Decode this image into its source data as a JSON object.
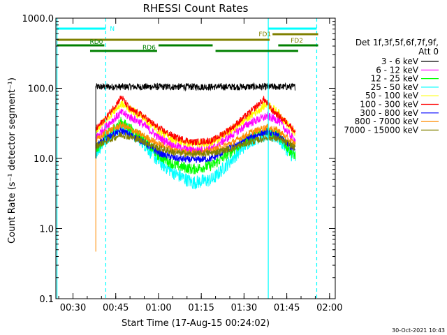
{
  "chart_data": {
    "type": "line",
    "title": "RHESSI Count Rates",
    "xlabel": "Start Time (17-Aug-15 00:24:02)",
    "ylabel": "Count Rate (s⁻¹ detector segment⁻¹)",
    "x_unit": "minutes after 00:24:02",
    "xlim": [
      0,
      98
    ],
    "ylim": [
      0.1,
      1000
    ],
    "yscale": "log",
    "grid": false,
    "x_ticks": [
      {
        "pos": 6,
        "label": "00:30"
      },
      {
        "pos": 21,
        "label": "00:45"
      },
      {
        "pos": 36,
        "label": "01:00"
      },
      {
        "pos": 51,
        "label": "01:15"
      },
      {
        "pos": 66,
        "label": "01:30"
      },
      {
        "pos": 81,
        "label": "01:45"
      },
      {
        "pos": 96,
        "label": "02:00"
      }
    ],
    "y_ticks": [
      {
        "pos": 0.1,
        "label": "0.1"
      },
      {
        "pos": 1,
        "label": "1.0"
      },
      {
        "pos": 10,
        "label": "10.0"
      },
      {
        "pos": 100,
        "label": "100.0"
      },
      {
        "pos": 1000,
        "label": "1000.0"
      }
    ],
    "legend": {
      "placement": "right",
      "title_lines": [
        "Det 1f,3f,5f,6f,7f,9f,",
        "Att 0"
      ],
      "entries": [
        {
          "label": "3 - 6 keV",
          "color": "#000000"
        },
        {
          "label": "6 - 12 keV",
          "color": "#ff00ff"
        },
        {
          "label": "12 - 25 keV",
          "color": "#00ff00"
        },
        {
          "label": "25 - 50 keV",
          "color": "#00ffff"
        },
        {
          "label": "50 - 100 keV",
          "color": "#ffff00"
        },
        {
          "label": "100 - 300 keV",
          "color": "#ff0000"
        },
        {
          "label": "300 - 800 keV",
          "color": "#0000ff"
        },
        {
          "label": "800 - 7000 keV",
          "color": "#ff8c00"
        },
        {
          "label": "7000 - 15000 keV",
          "color": "#808000"
        }
      ]
    },
    "series": [
      {
        "color": "#000000",
        "t_start": 14,
        "t_end": 84,
        "profile": [
          [
            14,
            105
          ],
          [
            84,
            105
          ]
        ],
        "noise": 0.05
      },
      {
        "color": "#00ffff",
        "t_start": 14,
        "t_end": 84,
        "profile": [
          [
            14,
            12
          ],
          [
            18,
            20
          ],
          [
            23,
            30
          ],
          [
            30,
            18
          ],
          [
            36,
            9
          ],
          [
            42,
            6
          ],
          [
            48,
            4.5
          ],
          [
            55,
            5
          ],
          [
            62,
            10
          ],
          [
            68,
            18
          ],
          [
            74,
            22
          ],
          [
            78,
            20
          ],
          [
            82,
            12
          ],
          [
            84,
            10
          ]
        ],
        "noise": 0.1
      },
      {
        "color": "#00ff00",
        "t_start": 14,
        "t_end": 84,
        "profile": [
          [
            14,
            13
          ],
          [
            18,
            22
          ],
          [
            23,
            33
          ],
          [
            30,
            20
          ],
          [
            36,
            11
          ],
          [
            42,
            8
          ],
          [
            48,
            7
          ],
          [
            55,
            8
          ],
          [
            62,
            13
          ],
          [
            68,
            20
          ],
          [
            74,
            25
          ],
          [
            78,
            22
          ],
          [
            82,
            13
          ],
          [
            84,
            11
          ]
        ],
        "noise": 0.08
      },
      {
        "color": "#0000ff",
        "t_start": 14,
        "t_end": 84,
        "profile": [
          [
            14,
            15
          ],
          [
            18,
            20
          ],
          [
            23,
            25
          ],
          [
            30,
            18
          ],
          [
            36,
            12
          ],
          [
            42,
            10
          ],
          [
            48,
            9.5
          ],
          [
            55,
            10
          ],
          [
            62,
            15
          ],
          [
            68,
            20
          ],
          [
            74,
            24
          ],
          [
            78,
            21
          ],
          [
            82,
            15
          ],
          [
            84,
            13
          ]
        ],
        "noise": 0.05
      },
      {
        "color": "#ff00ff",
        "t_start": 14,
        "t_end": 84,
        "profile": [
          [
            14,
            20
          ],
          [
            18,
            30
          ],
          [
            23,
            45
          ],
          [
            30,
            32
          ],
          [
            36,
            20
          ],
          [
            42,
            15
          ],
          [
            48,
            13
          ],
          [
            55,
            14
          ],
          [
            62,
            22
          ],
          [
            68,
            32
          ],
          [
            74,
            40
          ],
          [
            78,
            35
          ],
          [
            82,
            22
          ],
          [
            84,
            18
          ]
        ],
        "noise": 0.06
      },
      {
        "color": "#ff8c00",
        "t_start": 14,
        "t_end": 84,
        "profile": [
          [
            14,
            18
          ],
          [
            18,
            24
          ],
          [
            23,
            30
          ],
          [
            30,
            22
          ],
          [
            36,
            16
          ],
          [
            42,
            13
          ],
          [
            48,
            12
          ],
          [
            55,
            13
          ],
          [
            62,
            17
          ],
          [
            68,
            23
          ],
          [
            74,
            28
          ],
          [
            78,
            25
          ],
          [
            82,
            18
          ],
          [
            84,
            16
          ]
        ],
        "noise": 0.05
      },
      {
        "color": "#808000",
        "t_start": 14,
        "t_end": 84,
        "profile": [
          [
            14,
            15
          ],
          [
            18,
            18
          ],
          [
            23,
            22
          ],
          [
            30,
            18
          ],
          [
            36,
            14
          ],
          [
            42,
            12
          ],
          [
            48,
            11.5
          ],
          [
            55,
            12
          ],
          [
            62,
            14
          ],
          [
            68,
            17
          ],
          [
            74,
            20
          ],
          [
            78,
            19
          ],
          [
            82,
            16
          ],
          [
            84,
            14
          ]
        ],
        "noise": 0.05
      },
      {
        "color": "#ffff00",
        "t_start": 14,
        "t_end": 84,
        "profile": [
          [
            14,
            25
          ],
          [
            18,
            38
          ],
          [
            23,
            60
          ],
          [
            30,
            40
          ],
          [
            36,
            25
          ],
          [
            42,
            18
          ],
          [
            48,
            16
          ],
          [
            55,
            17
          ],
          [
            62,
            26
          ],
          [
            68,
            40
          ],
          [
            74,
            60
          ],
          [
            78,
            45
          ],
          [
            82,
            28
          ],
          [
            84,
            22
          ]
        ],
        "noise": 0.06
      },
      {
        "color": "#ff0000",
        "t_start": 14,
        "t_end": 84,
        "profile": [
          [
            14,
            26
          ],
          [
            18,
            40
          ],
          [
            23,
            75
          ],
          [
            26,
            50
          ],
          [
            30,
            42
          ],
          [
            36,
            27
          ],
          [
            42,
            20
          ],
          [
            48,
            17
          ],
          [
            55,
            18
          ],
          [
            62,
            28
          ],
          [
            68,
            45
          ],
          [
            73,
            70
          ],
          [
            76,
            48
          ],
          [
            82,
            30
          ],
          [
            84,
            24
          ]
        ],
        "noise": 0.05
      }
    ],
    "orange_dip": {
      "t": 14,
      "y_low": 0.47,
      "y_high": 16,
      "color": "#ff8c00"
    },
    "vertical_lines": [
      {
        "t": 0.4,
        "color": "#00ffff",
        "style": "solid"
      },
      {
        "t": 17.5,
        "color": "#00ffff",
        "style": "dashed"
      },
      {
        "t": 74.5,
        "color": "#00ffff",
        "style": "solid"
      },
      {
        "t": 91.5,
        "color": "#00ffff",
        "style": "dashed"
      }
    ],
    "flag_bars": [
      {
        "label": "N",
        "color": "#00ffff",
        "label_side": "right",
        "segments": [
          [
            0.4,
            17.5
          ],
          [
            74.5,
            91.5
          ]
        ],
        "y_level": 1
      },
      {
        "label": "FD1",
        "color": "#808000",
        "label_side": "left",
        "segments": [
          [
            76,
            92
          ]
        ],
        "y_level": 2
      },
      {
        "label": "FD2",
        "color": "#808000",
        "label_side": "below",
        "segments": [
          [
            0.4,
            75
          ]
        ],
        "y_level": 3
      },
      {
        "label": "RD0",
        "color": "#008000",
        "label_side": "above",
        "segments": [
          [
            0.4,
            17
          ],
          [
            36,
            55
          ],
          [
            78,
            92
          ]
        ],
        "y_level": 4
      },
      {
        "label": "RD6",
        "color": "#008000",
        "label_side": "above",
        "segments": [
          [
            12,
            35.5
          ],
          [
            56,
            85
          ]
        ],
        "y_level": 5
      }
    ]
  },
  "footer": {
    "timestamp": "30-Oct-2021 10:43"
  }
}
